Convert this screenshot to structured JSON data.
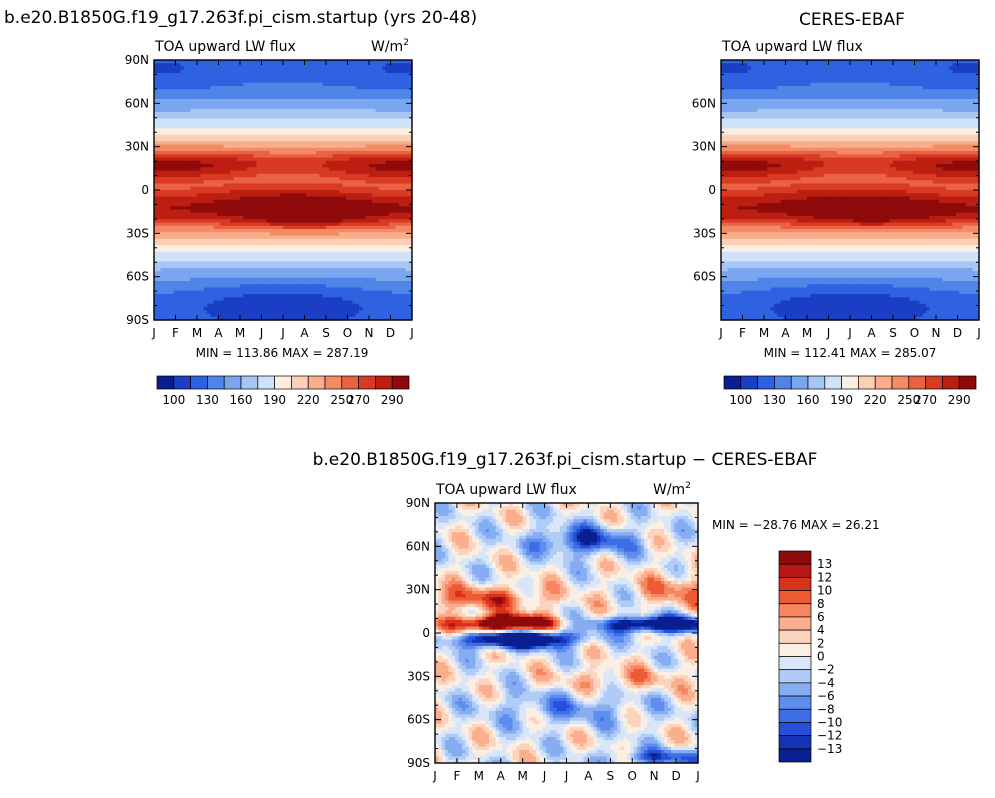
{
  "colors": {
    "main": [
      "#0a1f8f",
      "#1a3fc4",
      "#2f62e0",
      "#5085e8",
      "#7aa6ef",
      "#a6c6f4",
      "#d0e2f8",
      "#fbeee2",
      "#fbd0b6",
      "#f8ae8b",
      "#f48b64",
      "#ea6244",
      "#d83a23",
      "#bd1e12",
      "#8f0b0b"
    ],
    "diff": [
      "#0a1f8f",
      "#1432b5",
      "#2550db",
      "#3d6ee6",
      "#5e8ded",
      "#86adf2",
      "#b0cbf6",
      "#d9e6fa",
      "#fbeee2",
      "#fcd3bd",
      "#faae8d",
      "#f5865f",
      "#ec5a36",
      "#d8321c",
      "#b71612",
      "#8f0b0b"
    ]
  },
  "chart_data": [
    {
      "id": "model",
      "type": "contour",
      "title": "b.e20.B1850G.f19_g17.263f.pi_cism.startup (yrs 20-48)",
      "variable_label": "TOA upward LW flux",
      "units_label": "W/m",
      "units_exp": "2",
      "x_ticks": [
        "J",
        "F",
        "M",
        "A",
        "M",
        "J",
        "J",
        "A",
        "S",
        "O",
        "N",
        "D",
        "J"
      ],
      "y_ticks": [
        {
          "lat": 90,
          "label": "90N"
        },
        {
          "lat": 60,
          "label": "60N"
        },
        {
          "lat": 30,
          "label": "30N"
        },
        {
          "lat": 0,
          "label": "0"
        },
        {
          "lat": -30,
          "label": "30S"
        },
        {
          "lat": -60,
          "label": "60S"
        },
        {
          "lat": -90,
          "label": "90S"
        }
      ],
      "min": 113.86,
      "max": 287.19,
      "stats": "MIN = 113.86 MAX = 287.19",
      "levels": [
        100,
        115,
        130,
        145,
        160,
        175,
        190,
        205,
        220,
        235,
        250,
        260,
        270,
        280,
        290
      ],
      "colorbar_labels": [
        "100",
        "130",
        "160",
        "190",
        "220",
        "250",
        "270",
        "290"
      ],
      "mode": "abs",
      "variant": 0
    },
    {
      "id": "obs",
      "type": "contour",
      "title": "CERES-EBAF",
      "variable_label": "TOA upward LW flux",
      "units_label": "",
      "units_exp": "",
      "x_ticks": [
        "J",
        "F",
        "M",
        "A",
        "M",
        "J",
        "J",
        "A",
        "S",
        "O",
        "N",
        "D",
        "J"
      ],
      "y_ticks": [
        {
          "lat": 60,
          "label": "60N"
        },
        {
          "lat": 30,
          "label": "30N"
        },
        {
          "lat": 0,
          "label": "0"
        },
        {
          "lat": -30,
          "label": "30S"
        },
        {
          "lat": -60,
          "label": "60S"
        }
      ],
      "min": 112.41,
      "max": 285.07,
      "stats": "MIN = 112.41 MAX = 285.07",
      "levels": [
        100,
        115,
        130,
        145,
        160,
        175,
        190,
        205,
        220,
        235,
        250,
        260,
        270,
        280,
        290
      ],
      "colorbar_labels": [
        "100",
        "130",
        "160",
        "190",
        "220",
        "250",
        "270",
        "290"
      ],
      "mode": "abs",
      "variant": 1
    },
    {
      "id": "diff",
      "type": "contour",
      "title": "b.e20.B1850G.f19_g17.263f.pi_cism.startup  −  CERES-EBAF",
      "variable_label": "TOA upward LW flux",
      "units_label": "W/m",
      "units_exp": "2",
      "x_ticks": [
        "J",
        "F",
        "M",
        "A",
        "M",
        "J",
        "J",
        "A",
        "S",
        "O",
        "N",
        "D",
        "J"
      ],
      "y_ticks": [
        {
          "lat": 90,
          "label": "90N"
        },
        {
          "lat": 60,
          "label": "60N"
        },
        {
          "lat": 30,
          "label": "30N"
        },
        {
          "lat": 0,
          "label": "0"
        },
        {
          "lat": -30,
          "label": "30S"
        },
        {
          "lat": -60,
          "label": "60S"
        },
        {
          "lat": -90,
          "label": "90S"
        }
      ],
      "min": -28.76,
      "max": 26.21,
      "stats": "MIN = −28.76 MAX =   26.21",
      "levels": [
        -13,
        -12,
        -10,
        -8,
        -6,
        -4,
        -2,
        0,
        2,
        4,
        6,
        8,
        10,
        12,
        13
      ],
      "colorbar_labels": [
        "13",
        "12",
        "10",
        "8",
        "6",
        "4",
        "2",
        "0",
        "−2",
        "−4",
        "−6",
        "−8",
        "−10",
        "−12",
        "−13"
      ],
      "mode": "diff",
      "variant": 2
    }
  ]
}
